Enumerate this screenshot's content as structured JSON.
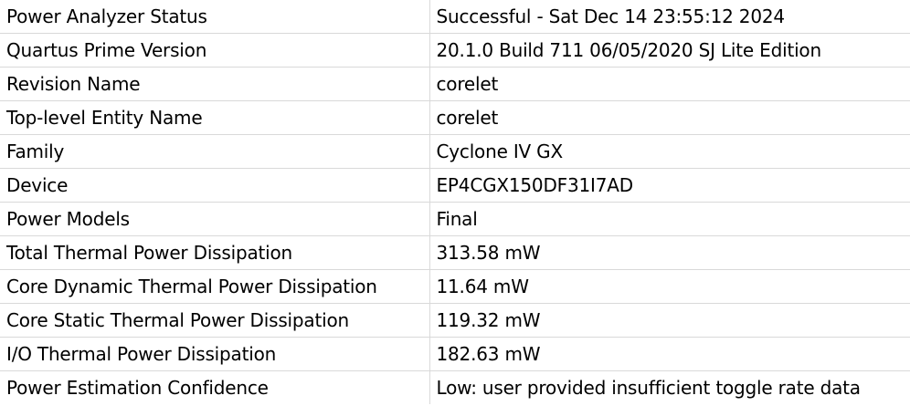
{
  "rows": [
    {
      "label": "Power Analyzer Status",
      "value": "Successful - Sat Dec 14 23:55:12 2024"
    },
    {
      "label": "Quartus Prime Version",
      "value": "20.1.0 Build 711 06/05/2020 SJ Lite Edition"
    },
    {
      "label": "Revision Name",
      "value": "corelet"
    },
    {
      "label": "Top-level Entity Name",
      "value": "corelet"
    },
    {
      "label": "Family",
      "value": "Cyclone IV GX"
    },
    {
      "label": "Device",
      "value": "EP4CGX150DF31I7AD"
    },
    {
      "label": "Power Models",
      "value": "Final"
    },
    {
      "label": "Total Thermal Power Dissipation",
      "value": "313.58 mW"
    },
    {
      "label": "Core Dynamic Thermal Power Dissipation",
      "value": "11.64 mW"
    },
    {
      "label": "Core Static Thermal Power Dissipation",
      "value": "119.32 mW"
    },
    {
      "label": "I/O Thermal Power Dissipation",
      "value": "182.63 mW"
    },
    {
      "label": "Power Estimation Confidence",
      "value": "Low: user provided insufficient toggle rate data"
    }
  ]
}
